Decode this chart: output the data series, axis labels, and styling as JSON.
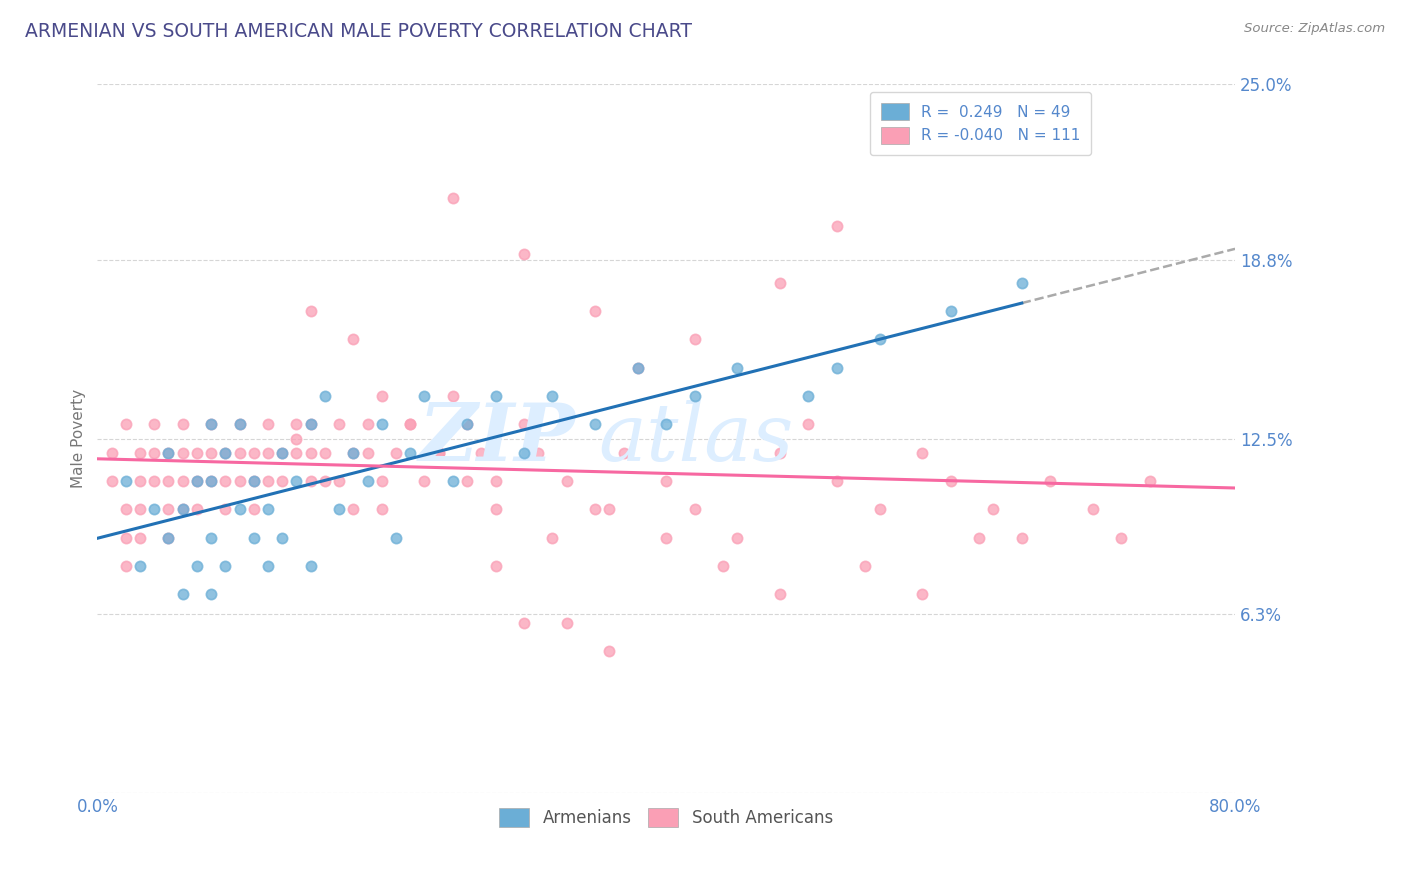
{
  "title": "ARMENIAN VS SOUTH AMERICAN MALE POVERTY CORRELATION CHART",
  "source": "Source: ZipAtlas.com",
  "ylabel": "Male Poverty",
  "xlim": [
    0.0,
    0.8
  ],
  "ylim": [
    0.0,
    0.25
  ],
  "yticks": [
    0.0,
    0.063,
    0.125,
    0.188,
    0.25
  ],
  "ytick_labels": [
    "",
    "6.3%",
    "12.5%",
    "18.8%",
    "25.0%"
  ],
  "xticks": [
    0.0,
    0.8
  ],
  "xtick_labels": [
    "0.0%",
    "80.0%"
  ],
  "legend_r1": "R =  0.249",
  "legend_n1": "N = 49",
  "legend_r2": "R = -0.040",
  "legend_n2": "N = 111",
  "color_armenian": "#6baed6",
  "color_south_american": "#fa9fb5",
  "color_armenian_line": "#2171b5",
  "color_south_american_line": "#f768a1",
  "title_color": "#4a4a8a",
  "axis_label_color": "#777777",
  "tick_color": "#5588cc",
  "watermark_color": "#ddeeff",
  "grid_color": "#cccccc",
  "armenian_x": [
    0.02,
    0.03,
    0.04,
    0.05,
    0.05,
    0.06,
    0.06,
    0.07,
    0.07,
    0.08,
    0.08,
    0.08,
    0.08,
    0.09,
    0.09,
    0.1,
    0.1,
    0.11,
    0.11,
    0.12,
    0.12,
    0.13,
    0.13,
    0.14,
    0.15,
    0.15,
    0.16,
    0.17,
    0.18,
    0.19,
    0.2,
    0.21,
    0.22,
    0.23,
    0.25,
    0.26,
    0.28,
    0.3,
    0.32,
    0.35,
    0.38,
    0.4,
    0.42,
    0.45,
    0.5,
    0.52,
    0.55,
    0.6,
    0.65
  ],
  "armenian_y": [
    0.11,
    0.08,
    0.1,
    0.12,
    0.09,
    0.07,
    0.1,
    0.11,
    0.08,
    0.13,
    0.09,
    0.07,
    0.11,
    0.08,
    0.12,
    0.1,
    0.13,
    0.09,
    0.11,
    0.1,
    0.08,
    0.12,
    0.09,
    0.11,
    0.13,
    0.08,
    0.14,
    0.1,
    0.12,
    0.11,
    0.13,
    0.09,
    0.12,
    0.14,
    0.11,
    0.13,
    0.14,
    0.12,
    0.14,
    0.13,
    0.15,
    0.13,
    0.14,
    0.15,
    0.14,
    0.15,
    0.16,
    0.17,
    0.18
  ],
  "south_american_x": [
    0.01,
    0.01,
    0.02,
    0.02,
    0.02,
    0.02,
    0.03,
    0.03,
    0.03,
    0.03,
    0.04,
    0.04,
    0.04,
    0.05,
    0.05,
    0.05,
    0.05,
    0.06,
    0.06,
    0.06,
    0.06,
    0.07,
    0.07,
    0.07,
    0.08,
    0.08,
    0.08,
    0.09,
    0.09,
    0.09,
    0.1,
    0.1,
    0.1,
    0.11,
    0.11,
    0.11,
    0.12,
    0.12,
    0.12,
    0.13,
    0.13,
    0.14,
    0.14,
    0.15,
    0.15,
    0.15,
    0.16,
    0.16,
    0.17,
    0.17,
    0.18,
    0.18,
    0.19,
    0.19,
    0.2,
    0.2,
    0.21,
    0.22,
    0.23,
    0.24,
    0.25,
    0.26,
    0.27,
    0.28,
    0.3,
    0.31,
    0.33,
    0.35,
    0.37,
    0.4,
    0.42,
    0.45,
    0.48,
    0.5,
    0.52,
    0.55,
    0.58,
    0.6,
    0.63,
    0.65,
    0.67,
    0.7,
    0.72,
    0.74,
    0.48,
    0.35,
    0.42,
    0.38,
    0.3,
    0.52,
    0.25,
    0.28,
    0.32,
    0.36,
    0.4,
    0.44,
    0.48,
    0.54,
    0.58,
    0.62,
    0.3,
    0.33,
    0.36,
    0.15,
    0.18,
    0.2,
    0.22,
    0.24,
    0.26,
    0.28,
    0.14
  ],
  "south_american_y": [
    0.12,
    0.11,
    0.1,
    0.13,
    0.09,
    0.08,
    0.12,
    0.11,
    0.1,
    0.09,
    0.13,
    0.12,
    0.11,
    0.1,
    0.12,
    0.11,
    0.09,
    0.13,
    0.12,
    0.1,
    0.11,
    0.12,
    0.11,
    0.1,
    0.13,
    0.12,
    0.11,
    0.12,
    0.11,
    0.1,
    0.13,
    0.12,
    0.11,
    0.12,
    0.11,
    0.1,
    0.13,
    0.12,
    0.11,
    0.12,
    0.11,
    0.13,
    0.12,
    0.11,
    0.13,
    0.12,
    0.11,
    0.12,
    0.13,
    0.11,
    0.12,
    0.1,
    0.13,
    0.12,
    0.11,
    0.1,
    0.12,
    0.13,
    0.11,
    0.12,
    0.21,
    0.13,
    0.12,
    0.11,
    0.13,
    0.12,
    0.11,
    0.1,
    0.12,
    0.11,
    0.1,
    0.09,
    0.12,
    0.13,
    0.11,
    0.1,
    0.12,
    0.11,
    0.1,
    0.09,
    0.11,
    0.1,
    0.09,
    0.11,
    0.18,
    0.17,
    0.16,
    0.15,
    0.19,
    0.2,
    0.14,
    0.08,
    0.09,
    0.1,
    0.09,
    0.08,
    0.07,
    0.08,
    0.07,
    0.09,
    0.06,
    0.06,
    0.05,
    0.17,
    0.16,
    0.14,
    0.13,
    0.12,
    0.11,
    0.1,
    0.125
  ]
}
